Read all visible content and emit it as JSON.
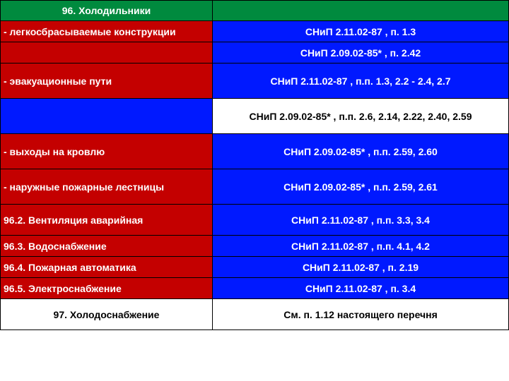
{
  "colors": {
    "green": "#008a3e",
    "red": "#c40000",
    "blue": "#0019ff",
    "white": "#ffffff",
    "black": "#000000"
  },
  "rows": [
    {
      "left": "96. Холодильники",
      "right": "",
      "leftClass": "green center",
      "rightClass": "green",
      "h": "short"
    },
    {
      "left": "- легкосбрасываемые конструкции",
      "right": "СНиП 2.11.02-87 , п. 1.3",
      "leftClass": "red",
      "rightClass": "blue",
      "h": "short"
    },
    {
      "left": "",
      "right": "СНиП 2.09.02-85* , п. 2.42",
      "leftClass": "red",
      "rightClass": "blue",
      "h": "short"
    },
    {
      "left": "- эвакуационные пути",
      "right": "СНиП 2.11.02-87 , п.п. 1.3, 2.2 - 2.4, 2.7",
      "leftClass": "red",
      "rightClass": "blue",
      "h": "tall"
    },
    {
      "left": "",
      "right": "СНиП 2.09.02-85* , п.п. 2.6, 2.14, 2.22, 2.40, 2.59",
      "leftClass": "blue",
      "rightClass": "white black",
      "h": "tall"
    },
    {
      "left": "- выходы на кровлю",
      "right": "СНиП 2.09.02-85* , п.п. 2.59, 2.60",
      "leftClass": "red",
      "rightClass": "blue",
      "h": "tall"
    },
    {
      "left": "- наружные пожарные лестницы",
      "right": "СНиП 2.09.02-85* , п.п. 2.59, 2.61",
      "leftClass": "red",
      "rightClass": "blue",
      "h": "tall"
    },
    {
      "left": "96.2. Вентиляция аварийная",
      "right": "СНиП 2.11.02-87 , п.п. 3.3, 3.4",
      "leftClass": "red",
      "rightClass": "blue",
      "h": "med"
    },
    {
      "left": "96.3. Водоснабжение",
      "right": "СНиП 2.11.02-87 , п.п. 4.1, 4.2",
      "leftClass": "red",
      "rightClass": "blue",
      "h": "short"
    },
    {
      "left": "96.4. Пожарная автоматика",
      "right": "СНиП 2.11.02-87 , п. 2.19",
      "leftClass": "red",
      "rightClass": "blue",
      "h": "short"
    },
    {
      "left": "96.5. Электроснабжение",
      "right": "СНиП 2.11.02-87 , п. 3.4",
      "leftClass": "red",
      "rightClass": "blue",
      "h": "short"
    },
    {
      "left": "97. Холодоснабжение",
      "right": "См. п. 1.12 настоящего перечня",
      "leftClass": "white black center",
      "rightClass": "white black",
      "h": "med"
    }
  ]
}
